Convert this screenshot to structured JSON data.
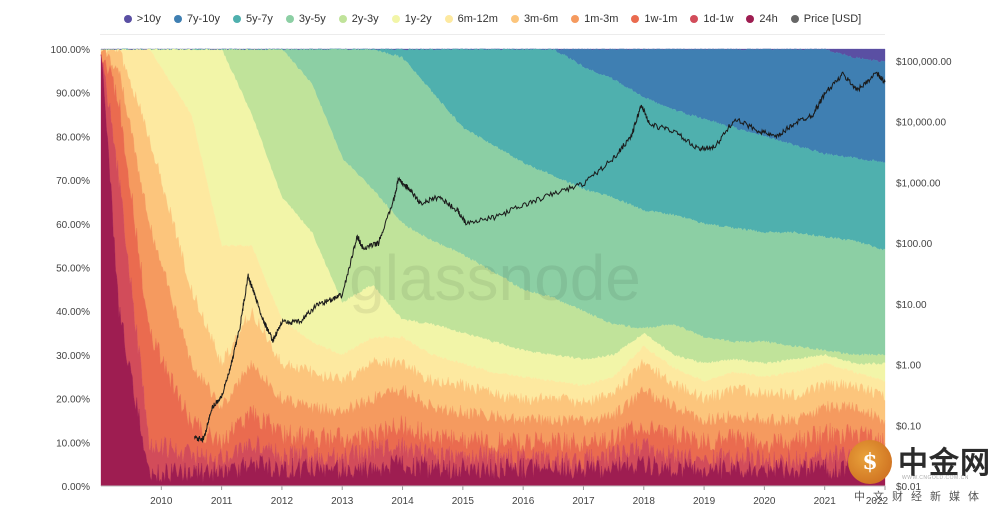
{
  "chart_data": {
    "type": "area",
    "stacking": "percent",
    "watermark": "glassnode",
    "legend_position": "top",
    "series": [
      {
        "name": ">10y",
        "color": "#5a4fa3"
      },
      {
        "name": "7y-10y",
        "color": "#3f7fb2"
      },
      {
        "name": "5y-7y",
        "color": "#4fb0ae"
      },
      {
        "name": "3y-5y",
        "color": "#8ccfa4"
      },
      {
        "name": "2y-3y",
        "color": "#c0e39a"
      },
      {
        "name": "1y-2y",
        "color": "#f2f5a8"
      },
      {
        "name": "6m-12m",
        "color": "#fde9a0"
      },
      {
        "name": "3m-6m",
        "color": "#fcc57c"
      },
      {
        "name": "1m-3m",
        "color": "#f59a5f"
      },
      {
        "name": "1w-1m",
        "color": "#ea6b4f"
      },
      {
        "name": "1d-1w",
        "color": "#d24c5a"
      },
      {
        "name": "24h",
        "color": "#9e1d51"
      },
      {
        "name": "Price [USD]",
        "color": "#666666"
      }
    ],
    "x_ticks": [
      "2010",
      "2011",
      "2012",
      "2013",
      "2014",
      "2015",
      "2016",
      "2017",
      "2018",
      "2019",
      "2020",
      "2021",
      "2022"
    ],
    "y_left_ticks": [
      "100.00%",
      "90.00%",
      "80.00%",
      "70.00%",
      "60.00%",
      "50.00%",
      "40.00%",
      "30.00%",
      "20.00%",
      "10.00%",
      "0.00%"
    ],
    "y_right_ticks": [
      "$100,000.00",
      "$10,000.00",
      "$1,000.00",
      "$100.00",
      "$10.00",
      "$1.00",
      "$0.10",
      "$0.01"
    ],
    "x_range": [
      2009.0,
      2022.0
    ],
    "y_left_range": [
      0,
      100
    ],
    "y_right_range_log": [
      0.01,
      100000
    ],
    "price_log_scale": true,
    "boundaries": [
      {
        "t": 2009.0,
        "c": [
          0,
          0,
          0,
          0,
          0,
          0,
          0,
          0,
          0,
          0,
          0,
          0
        ]
      },
      {
        "t": 2009.3,
        "c": [
          0,
          0,
          0,
          0,
          0,
          0,
          0,
          5,
          12,
          30,
          60,
          85
        ]
      },
      {
        "t": 2009.8,
        "c": [
          0,
          0,
          0,
          0,
          0,
          0,
          20,
          40,
          65,
          90,
          97,
          99
        ]
      },
      {
        "t": 2010.5,
        "c": [
          0,
          0,
          0,
          0,
          0,
          15,
          55,
          72,
          86,
          93,
          97,
          99
        ]
      },
      {
        "t": 2011.0,
        "c": [
          0,
          0,
          0,
          0,
          0,
          45,
          72,
          82,
          90,
          94,
          97,
          99
        ]
      },
      {
        "t": 2011.5,
        "c": [
          0,
          0,
          0,
          0,
          15,
          45,
          60,
          72,
          83,
          90,
          95,
          98
        ]
      },
      {
        "t": 2012.0,
        "c": [
          0,
          0,
          0,
          0,
          34,
          62,
          72,
          80,
          88,
          93,
          96,
          99
        ]
      },
      {
        "t": 2012.5,
        "c": [
          0,
          0,
          0,
          8,
          42,
          67,
          74,
          82,
          89,
          93,
          96,
          99
        ]
      },
      {
        "t": 2013.0,
        "c": [
          0,
          0,
          0,
          25,
          58,
          70,
          76,
          83,
          89,
          93,
          96,
          99
        ]
      },
      {
        "t": 2013.5,
        "c": [
          0,
          0,
          0,
          32,
          54,
          66,
          72,
          80,
          88,
          92,
          96,
          99
        ]
      },
      {
        "t": 2014.0,
        "c": [
          0,
          0,
          2,
          40,
          62,
          66,
          72,
          78,
          86,
          91,
          95,
          98
        ]
      },
      {
        "t": 2014.5,
        "c": [
          0,
          0,
          10,
          44,
          63,
          70,
          76,
          82,
          89,
          93,
          96,
          99
        ]
      },
      {
        "t": 2015.0,
        "c": [
          0,
          0,
          18,
          47,
          65,
          72,
          77,
          83,
          89,
          93,
          96,
          99
        ]
      },
      {
        "t": 2015.5,
        "c": [
          0,
          0,
          22,
          51,
          67,
          74,
          79,
          84,
          90,
          93,
          96,
          99
        ]
      },
      {
        "t": 2016.0,
        "c": [
          0,
          0,
          26,
          55,
          69,
          75,
          80,
          85,
          90,
          94,
          96,
          99
        ]
      },
      {
        "t": 2016.5,
        "c": [
          0,
          0,
          29,
          57,
          70,
          76,
          80,
          85,
          90,
          94,
          96,
          99
        ]
      },
      {
        "t": 2017.0,
        "c": [
          0,
          4,
          32,
          60,
          71,
          77,
          81,
          85,
          90,
          94,
          96,
          99
        ]
      },
      {
        "t": 2017.5,
        "c": [
          0,
          7,
          34,
          63,
          70,
          75,
          79,
          84,
          89,
          93,
          96,
          99
        ]
      },
      {
        "t": 2018.0,
        "c": [
          0,
          11,
          37,
          64,
          65,
          68,
          72,
          78,
          86,
          91,
          95,
          98
        ]
      },
      {
        "t": 2018.5,
        "c": [
          0,
          14,
          38,
          63,
          70,
          73,
          77,
          82,
          88,
          93,
          96,
          99
        ]
      },
      {
        "t": 2019.0,
        "c": [
          0,
          16,
          40,
          66,
          72,
          76,
          80,
          85,
          90,
          94,
          96,
          99
        ]
      },
      {
        "t": 2019.5,
        "c": [
          0,
          18,
          41,
          67,
          71,
          74,
          78,
          84,
          89,
          93,
          96,
          99
        ]
      },
      {
        "t": 2020.0,
        "c": [
          0,
          20,
          42,
          67,
          72,
          75,
          79,
          85,
          90,
          94,
          96,
          99
        ]
      },
      {
        "t": 2020.5,
        "c": [
          0,
          22,
          42,
          68,
          71,
          74,
          79,
          85,
          90,
          94,
          96,
          99
        ]
      },
      {
        "t": 2021.0,
        "c": [
          0,
          24,
          43,
          69,
          70,
          72,
          77,
          82,
          88,
          93,
          96,
          99
        ]
      },
      {
        "t": 2021.5,
        "c": [
          2,
          25,
          44,
          70,
          72,
          74,
          77,
          82,
          88,
          93,
          96,
          99
        ]
      },
      {
        "t": 2022.0,
        "c": [
          3,
          26,
          46,
          70,
          72,
          76,
          80,
          85,
          90,
          94,
          96,
          99
        ]
      }
    ],
    "price": [
      {
        "t": 2010.55,
        "p": 0.06
      },
      {
        "t": 2010.7,
        "p": 0.06
      },
      {
        "t": 2010.85,
        "p": 0.2
      },
      {
        "t": 2011.0,
        "p": 0.3
      },
      {
        "t": 2011.15,
        "p": 0.9
      },
      {
        "t": 2011.3,
        "p": 4
      },
      {
        "t": 2011.44,
        "p": 29
      },
      {
        "t": 2011.55,
        "p": 14
      },
      {
        "t": 2011.7,
        "p": 5
      },
      {
        "t": 2011.85,
        "p": 2.5
      },
      {
        "t": 2012.0,
        "p": 5
      },
      {
        "t": 2012.3,
        "p": 5
      },
      {
        "t": 2012.6,
        "p": 10
      },
      {
        "t": 2012.85,
        "p": 12
      },
      {
        "t": 2013.0,
        "p": 14
      },
      {
        "t": 2013.25,
        "p": 130
      },
      {
        "t": 2013.35,
        "p": 80
      },
      {
        "t": 2013.6,
        "p": 100
      },
      {
        "t": 2013.85,
        "p": 500
      },
      {
        "t": 2013.93,
        "p": 1100
      },
      {
        "t": 2014.1,
        "p": 800
      },
      {
        "t": 2014.3,
        "p": 450
      },
      {
        "t": 2014.6,
        "p": 580
      },
      {
        "t": 2014.9,
        "p": 350
      },
      {
        "t": 2015.05,
        "p": 220
      },
      {
        "t": 2015.5,
        "p": 260
      },
      {
        "t": 2016.0,
        "p": 420
      },
      {
        "t": 2016.5,
        "p": 650
      },
      {
        "t": 2017.0,
        "p": 950
      },
      {
        "t": 2017.5,
        "p": 2500
      },
      {
        "t": 2017.8,
        "p": 6000
      },
      {
        "t": 2017.96,
        "p": 19000
      },
      {
        "t": 2018.1,
        "p": 9000
      },
      {
        "t": 2018.5,
        "p": 7000
      },
      {
        "t": 2018.9,
        "p": 3500
      },
      {
        "t": 2019.2,
        "p": 4000
      },
      {
        "t": 2019.5,
        "p": 11000
      },
      {
        "t": 2019.9,
        "p": 7200
      },
      {
        "t": 2020.2,
        "p": 5500
      },
      {
        "t": 2020.5,
        "p": 9500
      },
      {
        "t": 2020.8,
        "p": 13000
      },
      {
        "t": 2021.0,
        "p": 29000
      },
      {
        "t": 2021.3,
        "p": 60000
      },
      {
        "t": 2021.55,
        "p": 33000
      },
      {
        "t": 2021.85,
        "p": 64000
      },
      {
        "t": 2022.0,
        "p": 45000
      }
    ]
  },
  "logo": {
    "main": "中金网",
    "url": "WWW.CNGOLD.COM.CN",
    "sub": "中文财经新媒体",
    "emblem": "$"
  }
}
